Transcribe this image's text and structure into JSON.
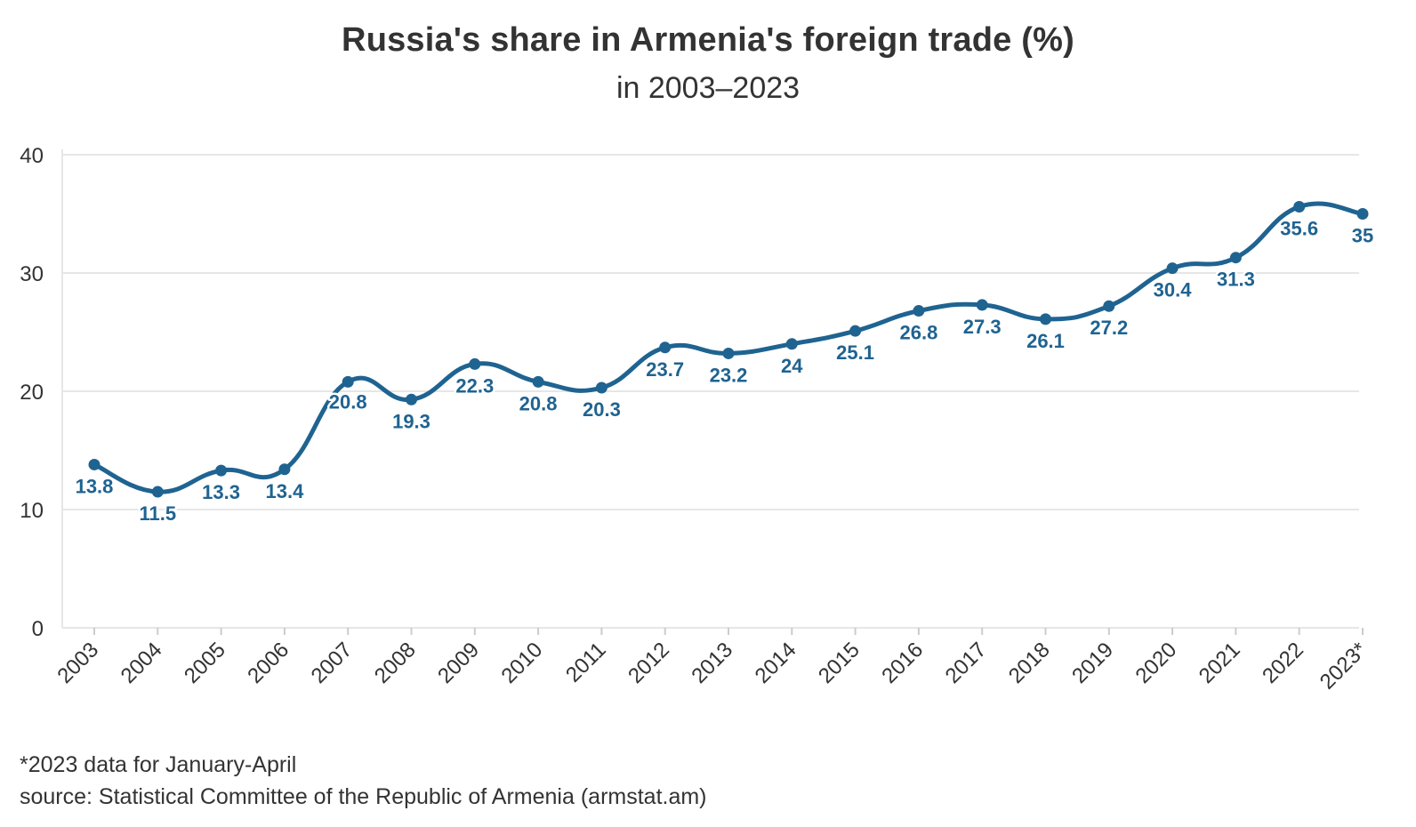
{
  "chart_data": {
    "type": "line",
    "title": "Russia's share in Armenia's foreign trade (%)",
    "subtitle": "in 2003–2023",
    "xlabel": "",
    "ylabel": "",
    "categories": [
      "2003",
      "2004",
      "2005",
      "2006",
      "2007",
      "2008",
      "2009",
      "2010",
      "2011",
      "2012",
      "2013",
      "2014",
      "2015",
      "2016",
      "2017",
      "2018",
      "2019",
      "2020",
      "2021",
      "2022",
      "2023*"
    ],
    "series": [
      {
        "values": [
          13.8,
          11.5,
          13.3,
          13.4,
          20.8,
          19.3,
          22.3,
          20.8,
          20.3,
          23.7,
          23.2,
          24,
          25.1,
          26.8,
          27.3,
          26.1,
          27.2,
          30.4,
          31.3,
          35.6,
          35
        ],
        "labels": [
          "13.8",
          "11.5",
          "13.3",
          "13.4",
          "20.8",
          "19.3",
          "22.3",
          "20.8",
          "20.3",
          "23.7",
          "23.2",
          "24",
          "25.1",
          "26.8",
          "27.3",
          "26.1",
          "27.2",
          "30.4",
          "31.3",
          "35.6",
          "35"
        ],
        "color": "#1f6391"
      }
    ],
    "ylim": [
      0,
      40
    ],
    "yticks": [
      "0",
      "10",
      "20",
      "30",
      "40"
    ],
    "grid": true,
    "legend": "none",
    "colors": {
      "line": "#1f6391",
      "label": "#1f6391",
      "grid": "#e6e6e6",
      "text": "#333333"
    }
  },
  "footnotes": {
    "note": "*2023 data for January-April",
    "source": "source: Statistical Committee of the Republic of Armenia (armstat.am)"
  }
}
